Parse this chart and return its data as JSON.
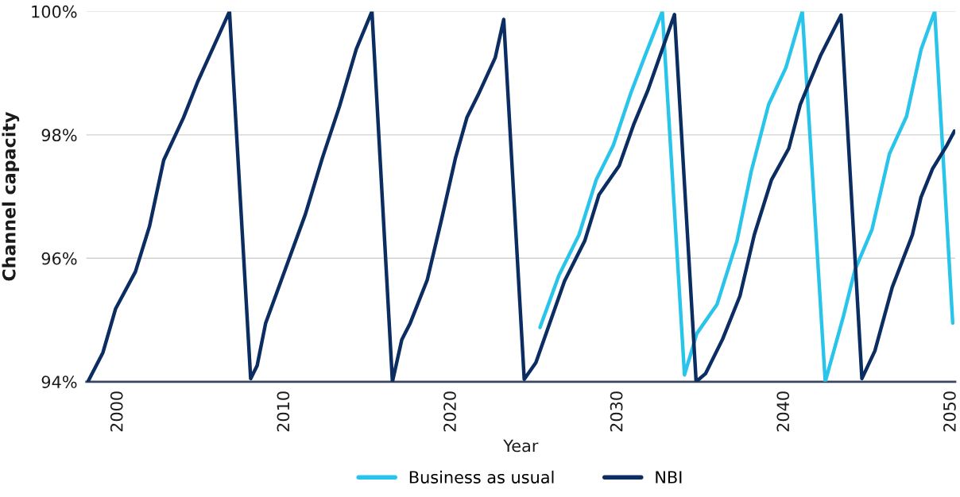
{
  "chart_data": {
    "type": "line",
    "xlabel": "Year",
    "ylabel": "Channel capacity",
    "xlim": [
      1998.1,
      2050.25
    ],
    "xticks": [
      2000,
      2010,
      2020,
      2030,
      2040,
      2050
    ],
    "ylim": [
      94,
      100
    ],
    "yticks": [
      {
        "value": 94,
        "label": "94%"
      },
      {
        "value": 96,
        "label": "96%"
      },
      {
        "value": 98,
        "label": "98%"
      },
      {
        "value": 100,
        "label": "100%"
      }
    ],
    "grid": "y",
    "legend": "bottom",
    "marker": "none",
    "line_style": "solid",
    "series": [
      {
        "name": "Business as usual",
        "color": "#29c4ea",
        "x": [
          2025.33,
          2026.46,
          2027.67,
          2028.7,
          2029.73,
          2030.77,
          2031.63,
          2032.67,
          2034.0,
          2034.74,
          2035.95,
          2037.15,
          2038.01,
          2039.05,
          2040.09,
          2041.07,
          2042.45,
          2043.54,
          2044.23,
          2045.26,
          2046.3,
          2047.33,
          2048.2,
          2049.02,
          2050.1
        ],
        "values": [
          94.88,
          95.72,
          96.38,
          97.27,
          97.83,
          98.67,
          99.28,
          100,
          94.11,
          94.78,
          95.25,
          96.28,
          97.41,
          98.49,
          99.09,
          100,
          94.0,
          95.06,
          95.81,
          96.47,
          97.69,
          98.3,
          99.38,
          100,
          94.95
        ]
      },
      {
        "name": "NBI",
        "color": "#0c2d62",
        "x": [
          1998.19,
          1999.09,
          1999.85,
          2001.04,
          2001.89,
          2002.74,
          2003.93,
          2004.78,
          2005.97,
          2006.69,
          2007.96,
          2008.35,
          2008.86,
          2010.05,
          2011.24,
          2012.27,
          2013.29,
          2014.3,
          2015.24,
          2016.47,
          2017.03,
          2017.54,
          2018.56,
          2019.41,
          2020.26,
          2020.94,
          2021.62,
          2022.64,
          2023.15,
          2024.38,
          2025.08,
          2026.8,
          2028.01,
          2028.87,
          2030.08,
          2030.94,
          2031.8,
          2032.84,
          2033.4,
          2034.7,
          2035.26,
          2036.29,
          2037.33,
          2038.19,
          2039.22,
          2040.26,
          2040.95,
          2042.16,
          2043.4,
          2044.65,
          2045.43,
          2046.47,
          2047.68,
          2048.2,
          2048.89,
          2049.75,
          2050.2
        ],
        "values": [
          94.0,
          94.47,
          95.18,
          95.78,
          96.52,
          97.59,
          98.28,
          98.86,
          99.57,
          100,
          94.05,
          94.26,
          94.95,
          95.83,
          96.71,
          97.63,
          98.46,
          99.39,
          100,
          94.0,
          94.68,
          94.95,
          95.65,
          96.62,
          97.63,
          98.28,
          98.65,
          99.25,
          99.87,
          94.04,
          94.31,
          95.63,
          96.28,
          97.03,
          97.5,
          98.16,
          98.72,
          99.52,
          99.95,
          94.0,
          94.13,
          94.69,
          95.39,
          96.38,
          97.27,
          97.78,
          98.49,
          99.28,
          99.94,
          94.05,
          94.5,
          95.53,
          96.38,
          96.99,
          97.45,
          97.83,
          98.06
        ]
      }
    ]
  }
}
